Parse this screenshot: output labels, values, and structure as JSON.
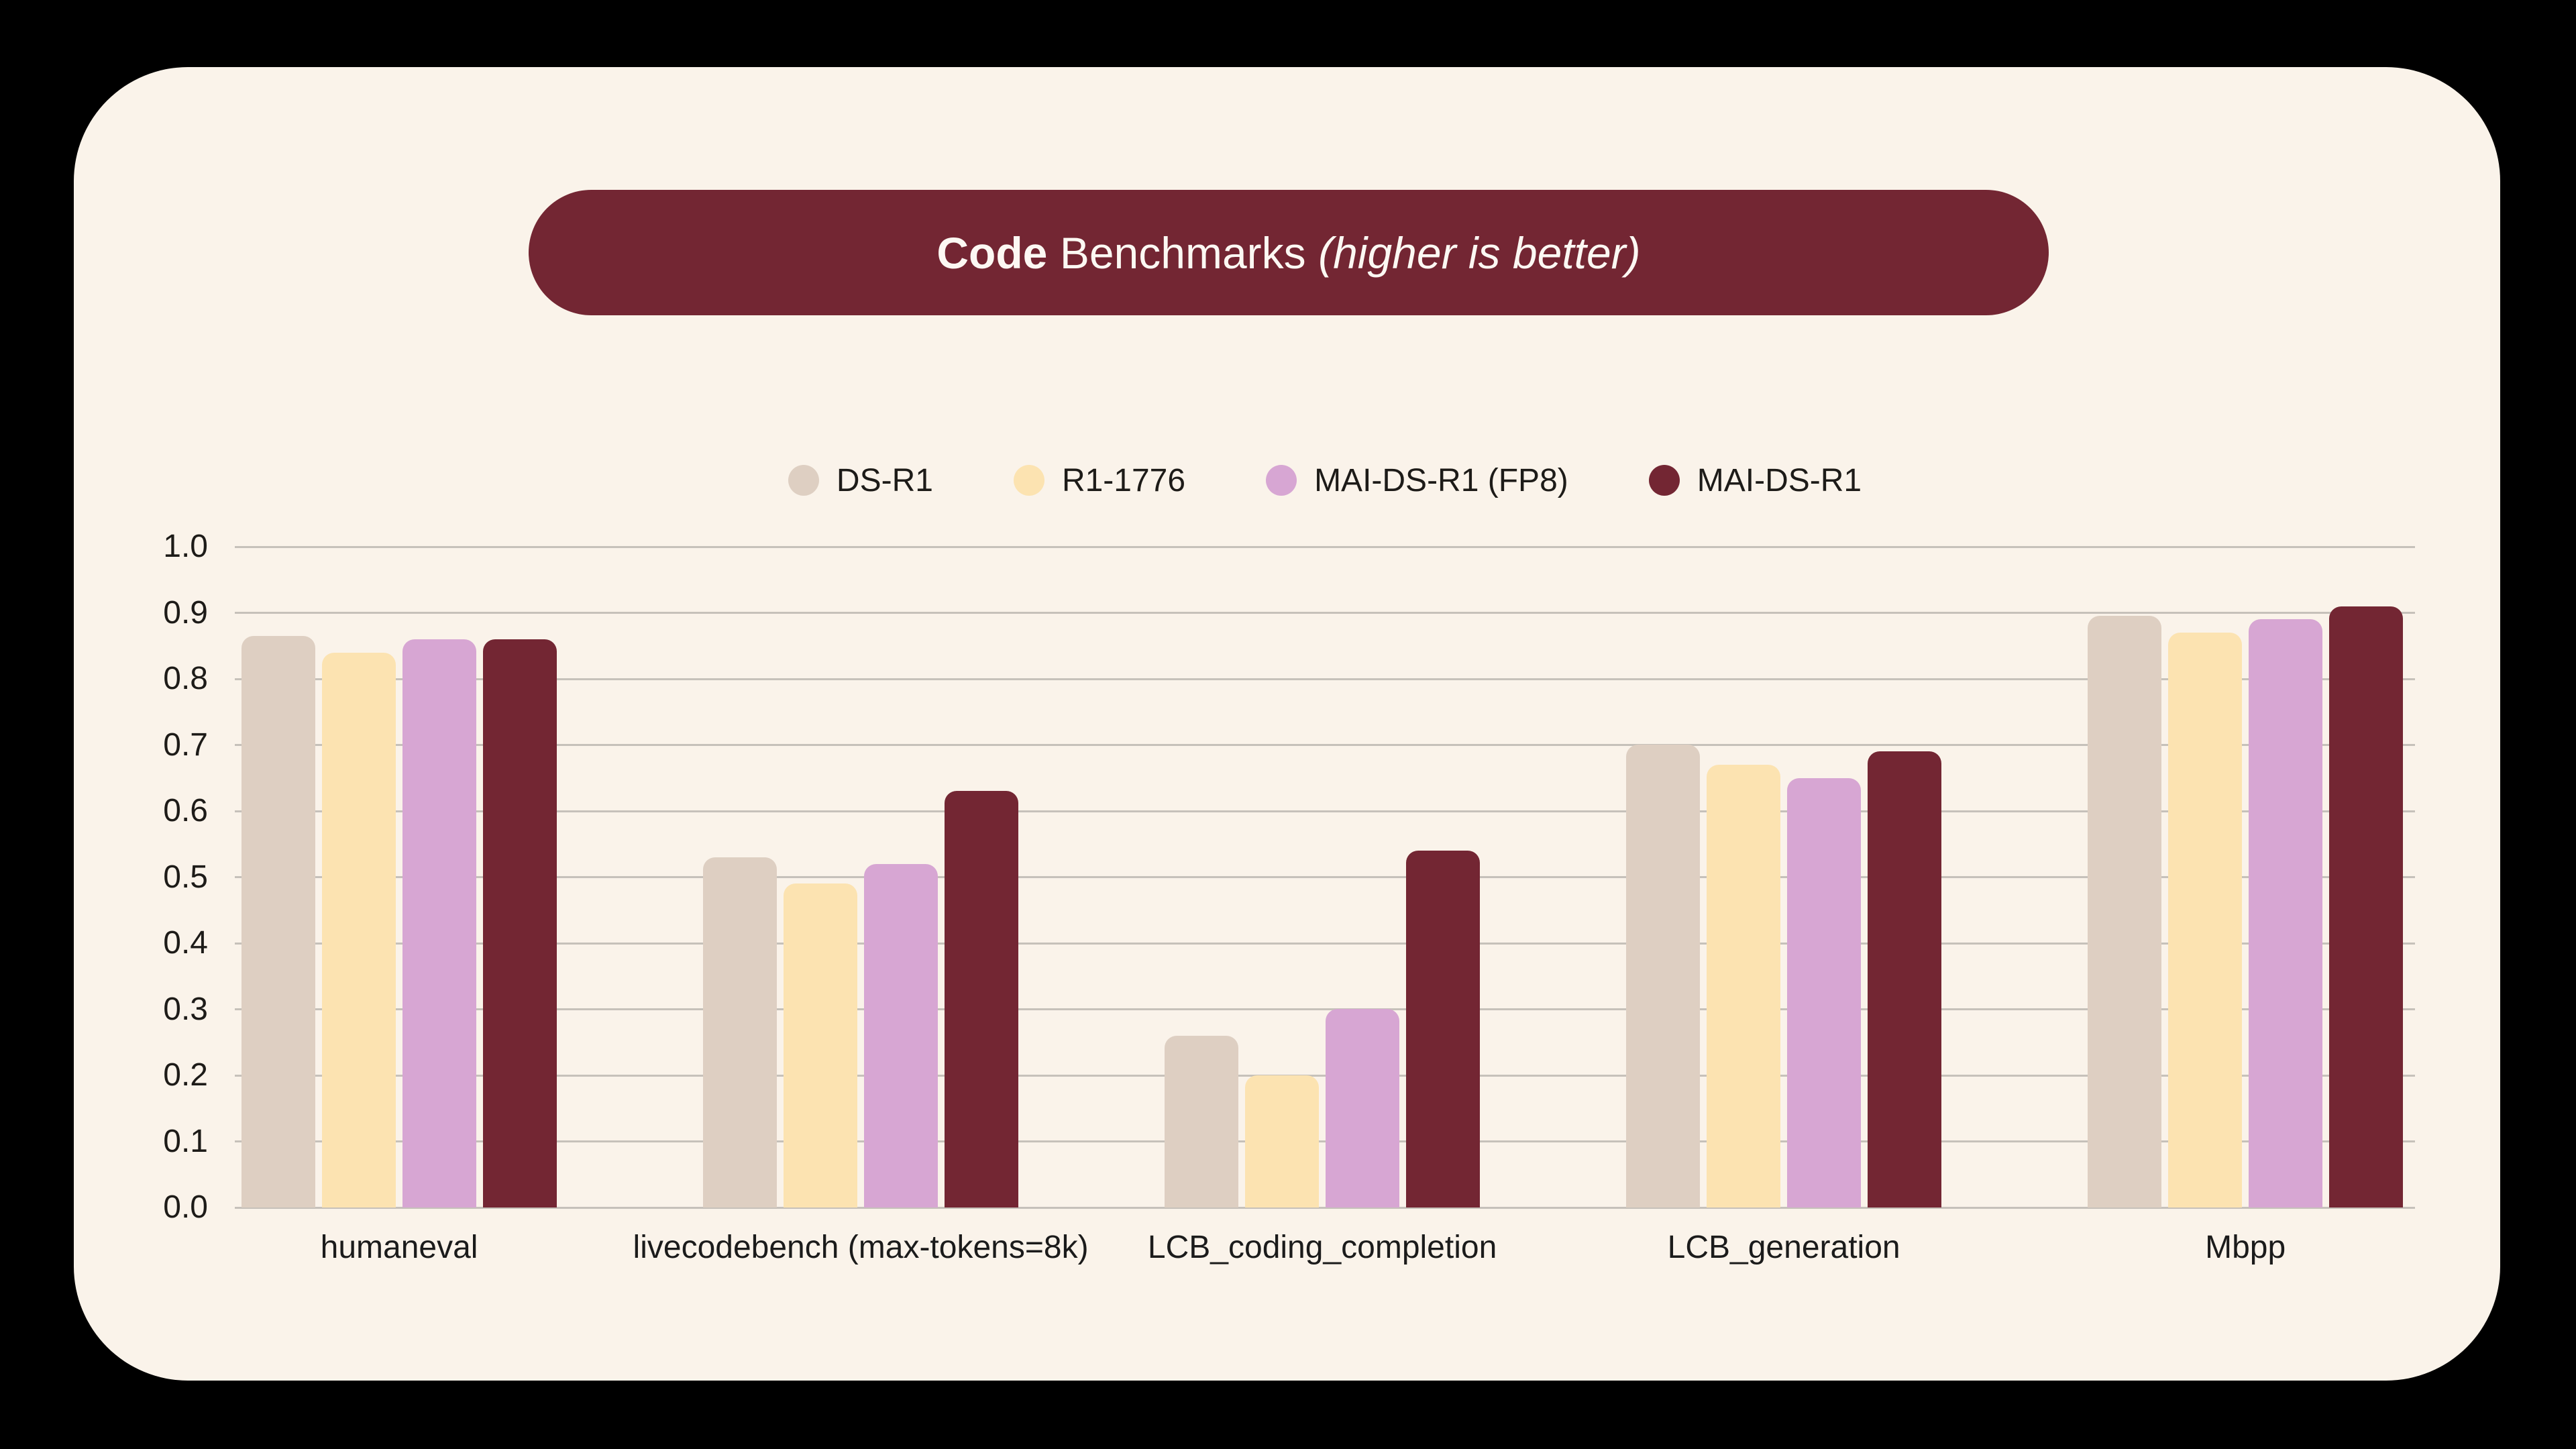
{
  "title": {
    "bold": "Code",
    "regular": "Benchmarks",
    "italic": "(higher is better)"
  },
  "legend": {
    "items": [
      "DS-R1",
      "R1-1776",
      "MAI-DS-R1 (FP8)",
      "MAI-DS-R1"
    ]
  },
  "colors": {
    "page_background": "#000000",
    "card_background": "#faf3ea",
    "title_pill_background": "#732633",
    "title_text": "#fcf8f3",
    "gridline": "#c6c1ba",
    "axis_text": "#1d1b18",
    "series": [
      "#decfc2",
      "#fce3b1",
      "#d7a6d3",
      "#732633"
    ]
  },
  "chart_data": {
    "type": "bar",
    "title": "Code Benchmarks (higher is better)",
    "categories": [
      "humaneval",
      "livecodebench (max-tokens=8k)",
      "LCB_coding_completion",
      "LCB_generation",
      "Mbpp"
    ],
    "series": [
      {
        "name": "DS-R1",
        "values": [
          0.865,
          0.53,
          0.26,
          0.7,
          0.895
        ]
      },
      {
        "name": "R1-1776",
        "values": [
          0.84,
          0.49,
          0.2,
          0.67,
          0.87
        ]
      },
      {
        "name": "MAI-DS-R1 (FP8)",
        "values": [
          0.86,
          0.52,
          0.3,
          0.65,
          0.89
        ]
      },
      {
        "name": "MAI-DS-R1",
        "values": [
          0.86,
          0.63,
          0.54,
          0.69,
          0.91
        ]
      }
    ],
    "ylim": [
      0.0,
      1.0
    ],
    "y_ticks": [
      "1.0",
      "0.9",
      "0.8",
      "0.7",
      "0.6",
      "0.5",
      "0.4",
      "0.3",
      "0.2",
      "0.1",
      "0.0"
    ],
    "grid": true,
    "legend_position": "top-center",
    "xlabel": "",
    "ylabel": ""
  }
}
